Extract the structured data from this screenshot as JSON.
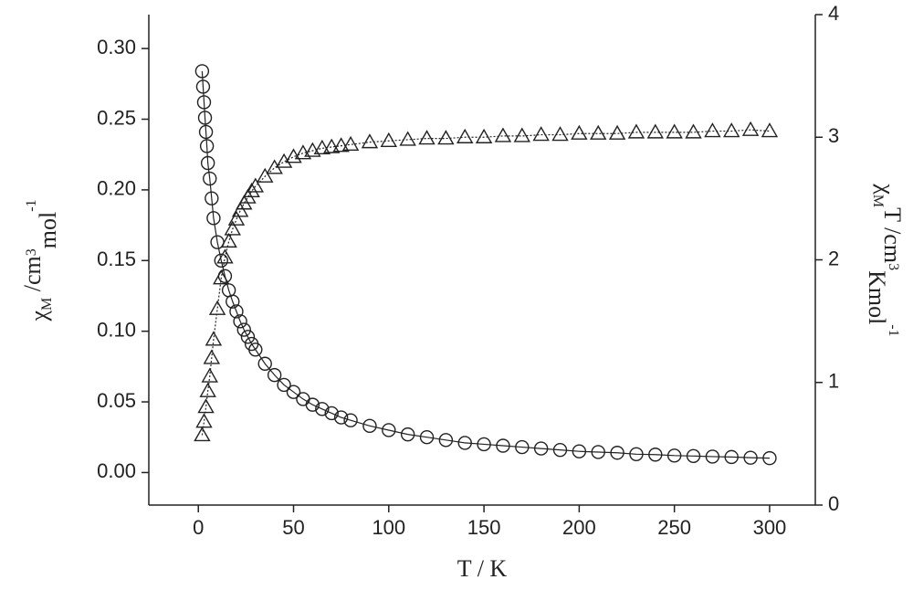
{
  "chart_data": {
    "type": "scatter",
    "x_label": "T / K",
    "y_label": [
      "χ",
      "M",
      " /cm",
      "3",
      "mol",
      "-1"
    ],
    "y2_label": [
      "χ",
      "M",
      "T /cm",
      "3",
      "Kmol",
      "-1"
    ],
    "xlim": [
      -26,
      324
    ],
    "xticks": [
      0,
      50,
      100,
      150,
      200,
      250,
      300
    ],
    "ylim": [
      -0.023,
      0.324
    ],
    "yticks": [
      {
        "value": 0,
        "label": "0.00"
      },
      0.05,
      {
        "value": 0.1,
        "label": "0.10"
      },
      0.15,
      {
        "value": 0.2,
        "label": "0.20"
      },
      0.25,
      {
        "value": 0.3,
        "label": "0.30"
      }
    ],
    "y2lim": [
      0,
      4
    ],
    "y2ticks": [
      0,
      1,
      2,
      3,
      4
    ],
    "color": "#222222",
    "series": [
      {
        "marker": "circle",
        "axis": "y",
        "x": [
          2,
          2.5,
          3,
          3.5,
          4,
          4.5,
          5,
          6,
          7,
          8,
          10,
          12,
          14,
          16,
          18,
          20,
          22,
          24,
          26,
          28,
          30,
          35,
          40,
          45,
          50,
          55,
          60,
          65,
          70,
          75,
          80,
          90,
          100,
          110,
          120,
          130,
          140,
          150,
          160,
          170,
          180,
          190,
          200,
          210,
          220,
          230,
          240,
          250,
          260,
          270,
          280,
          290,
          300
        ],
        "values": [
          0.284,
          0.273,
          0.262,
          0.251,
          0.241,
          0.231,
          0.219,
          0.208,
          0.194,
          0.18,
          0.163,
          0.15,
          0.139,
          0.129,
          0.121,
          0.114,
          0.107,
          0.101,
          0.096,
          0.091,
          0.087,
          0.077,
          0.069,
          0.062,
          0.057,
          0.052,
          0.048,
          0.045,
          0.042,
          0.039,
          0.037,
          0.033,
          0.03,
          0.027,
          0.025,
          0.023,
          0.021,
          0.02,
          0.019,
          0.018,
          0.017,
          0.016,
          0.015,
          0.0145,
          0.014,
          0.013,
          0.0127,
          0.012,
          0.0117,
          0.0113,
          0.011,
          0.0105,
          0.0102
        ]
      },
      {
        "marker": "triangle",
        "axis": "y2",
        "x": [
          2,
          3,
          4,
          5,
          6,
          7,
          8,
          10,
          12,
          14,
          16,
          18,
          20,
          22,
          24,
          26,
          28,
          30,
          35,
          40,
          45,
          50,
          55,
          60,
          65,
          70,
          75,
          80,
          90,
          100,
          110,
          120,
          130,
          140,
          150,
          160,
          170,
          180,
          190,
          200,
          210,
          220,
          230,
          240,
          250,
          260,
          270,
          280,
          290,
          300
        ],
        "values": [
          0.57,
          0.68,
          0.8,
          0.93,
          1.05,
          1.2,
          1.35,
          1.6,
          1.85,
          2.02,
          2.15,
          2.25,
          2.33,
          2.4,
          2.46,
          2.51,
          2.56,
          2.6,
          2.68,
          2.75,
          2.8,
          2.84,
          2.87,
          2.89,
          2.91,
          2.92,
          2.93,
          2.94,
          2.96,
          2.97,
          2.98,
          2.99,
          2.99,
          3.0,
          3.0,
          3.01,
          3.01,
          3.02,
          3.02,
          3.03,
          3.03,
          3.03,
          3.04,
          3.04,
          3.04,
          3.04,
          3.05,
          3.05,
          3.06,
          3.05
        ]
      }
    ]
  }
}
